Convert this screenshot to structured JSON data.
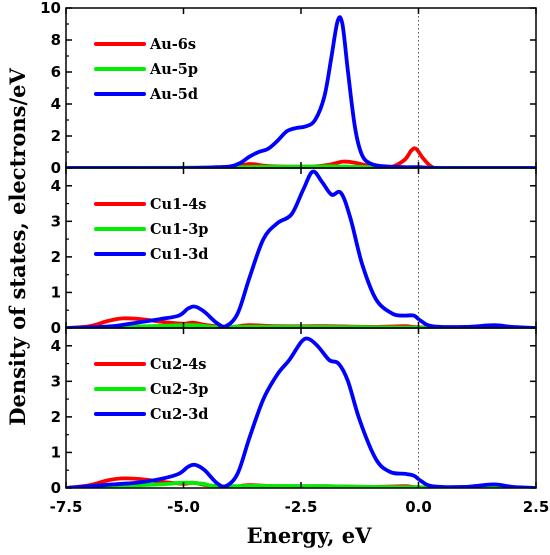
{
  "chart_data": {
    "type": "line",
    "xlabel": "Energy, eV",
    "ylabel": "Density of states, electrons/eV",
    "xlim": [
      -7.5,
      2.5
    ],
    "x_ticks": [
      "-7.5",
      "-5.0",
      "-2.5",
      "0.0",
      "2.5"
    ],
    "fermi_level": 0.0,
    "grid": false,
    "legend_position": "top-left",
    "series_colors": {
      "s": "#ff0000",
      "p": "#00ee00",
      "d": "#0000ff"
    },
    "panels": [
      {
        "ylim": [
          0,
          10
        ],
        "y_ticks": [
          "0",
          "2",
          "4",
          "6",
          "8",
          "10"
        ],
        "legend": [
          "Au-6s",
          "Au-5p",
          "Au-5d"
        ],
        "series": [
          {
            "name": "Au-6s",
            "points": [
              [
                -7.5,
                0
              ],
              [
                -5.5,
                0
              ],
              [
                -4.5,
                0.02
              ],
              [
                -4.0,
                0.05
              ],
              [
                -3.6,
                0.25
              ],
              [
                -3.3,
                0.15
              ],
              [
                -3.0,
                0.1
              ],
              [
                -2.6,
                0.08
              ],
              [
                -2.2,
                0.1
              ],
              [
                -1.9,
                0.2
              ],
              [
                -1.6,
                0.4
              ],
              [
                -1.3,
                0.3
              ],
              [
                -1.0,
                0.1
              ],
              [
                -0.6,
                0.05
              ],
              [
                -0.3,
                0.5
              ],
              [
                -0.15,
                1.1
              ],
              [
                -0.05,
                1.2
              ],
              [
                0.1,
                0.6
              ],
              [
                0.3,
                0.05
              ],
              [
                0.6,
                0
              ],
              [
                2.5,
                0
              ]
            ]
          },
          {
            "name": "Au-5p",
            "points": [
              [
                -7.5,
                0
              ],
              [
                -5.0,
                0.01
              ],
              [
                -4.0,
                0.04
              ],
              [
                -3.2,
                0.08
              ],
              [
                -2.5,
                0.08
              ],
              [
                -1.8,
                0.1
              ],
              [
                -1.0,
                0.05
              ],
              [
                0.0,
                0.02
              ],
              [
                1.0,
                0
              ],
              [
                2.5,
                0
              ]
            ]
          },
          {
            "name": "Au-5d",
            "points": [
              [
                -7.5,
                0
              ],
              [
                -5.0,
                0
              ],
              [
                -4.3,
                0.05
              ],
              [
                -4.0,
                0.1
              ],
              [
                -3.8,
                0.3
              ],
              [
                -3.6,
                0.7
              ],
              [
                -3.4,
                1.0
              ],
              [
                -3.2,
                1.2
              ],
              [
                -3.0,
                1.7
              ],
              [
                -2.8,
                2.3
              ],
              [
                -2.6,
                2.5
              ],
              [
                -2.4,
                2.6
              ],
              [
                -2.2,
                3.0
              ],
              [
                -2.0,
                4.5
              ],
              [
                -1.85,
                7.0
              ],
              [
                -1.72,
                9.2
              ],
              [
                -1.62,
                9.0
              ],
              [
                -1.5,
                6.0
              ],
              [
                -1.35,
                2.5
              ],
              [
                -1.2,
                0.8
              ],
              [
                -1.0,
                0.25
              ],
              [
                -0.7,
                0.1
              ],
              [
                -0.3,
                0.05
              ],
              [
                0,
                0.05
              ],
              [
                0.5,
                0
              ],
              [
                2.5,
                0
              ]
            ]
          }
        ]
      },
      {
        "ylim": [
          0,
          4.5
        ],
        "y_ticks": [
          "0",
          "1",
          "2",
          "3",
          "4"
        ],
        "legend": [
          "Cu1-4s",
          "Cu1-3p",
          "Cu1-3d"
        ],
        "series": [
          {
            "name": "Cu1-4s",
            "points": [
              [
                -7.5,
                0
              ],
              [
                -7.0,
                0.05
              ],
              [
                -6.6,
                0.2
              ],
              [
                -6.3,
                0.27
              ],
              [
                -5.9,
                0.25
              ],
              [
                -5.5,
                0.18
              ],
              [
                -5.0,
                0.12
              ],
              [
                -4.8,
                0.15
              ],
              [
                -4.5,
                0.08
              ],
              [
                -4.0,
                0.03
              ],
              [
                -3.6,
                0.08
              ],
              [
                -3.0,
                0.05
              ],
              [
                -2.0,
                0.05
              ],
              [
                -1.0,
                0.03
              ],
              [
                -0.3,
                0.05
              ],
              [
                0,
                0.02
              ],
              [
                1.0,
                0
              ],
              [
                2.5,
                0
              ]
            ]
          },
          {
            "name": "Cu1-3p",
            "points": [
              [
                -7.5,
                0
              ],
              [
                -6.5,
                0.02
              ],
              [
                -5.5,
                0.06
              ],
              [
                -4.8,
                0.08
              ],
              [
                -4.3,
                0.03
              ],
              [
                -3.5,
                0.04
              ],
              [
                -2.0,
                0.03
              ],
              [
                -1.0,
                0.02
              ],
              [
                0,
                0.01
              ],
              [
                2.5,
                0
              ]
            ]
          },
          {
            "name": "Cu1-3d",
            "points": [
              [
                -7.5,
                0
              ],
              [
                -7.0,
                0.02
              ],
              [
                -6.5,
                0.05
              ],
              [
                -6.0,
                0.15
              ],
              [
                -5.5,
                0.25
              ],
              [
                -5.1,
                0.35
              ],
              [
                -4.9,
                0.55
              ],
              [
                -4.75,
                0.6
              ],
              [
                -4.55,
                0.45
              ],
              [
                -4.3,
                0.15
              ],
              [
                -4.1,
                0.05
              ],
              [
                -3.85,
                0.4
              ],
              [
                -3.6,
                1.4
              ],
              [
                -3.3,
                2.5
              ],
              [
                -3.0,
                2.95
              ],
              [
                -2.7,
                3.2
              ],
              [
                -2.45,
                3.9
              ],
              [
                -2.25,
                4.4
              ],
              [
                -2.05,
                4.1
              ],
              [
                -1.85,
                3.75
              ],
              [
                -1.65,
                3.8
              ],
              [
                -1.45,
                3.1
              ],
              [
                -1.2,
                1.8
              ],
              [
                -0.9,
                0.8
              ],
              [
                -0.55,
                0.4
              ],
              [
                -0.3,
                0.35
              ],
              [
                -0.1,
                0.35
              ],
              [
                0.05,
                0.2
              ],
              [
                0.3,
                0.05
              ],
              [
                1.0,
                0.03
              ],
              [
                1.6,
                0.08
              ],
              [
                2.0,
                0.03
              ],
              [
                2.5,
                0
              ]
            ]
          }
        ]
      },
      {
        "ylim": [
          0,
          4.5
        ],
        "y_ticks": [
          "0",
          "1",
          "2",
          "3",
          "4"
        ],
        "legend": [
          "Cu2-4s",
          "Cu2-3p",
          "Cu2-3d"
        ],
        "series": [
          {
            "name": "Cu2-4s",
            "points": [
              [
                -7.5,
                0
              ],
              [
                -7.0,
                0.08
              ],
              [
                -6.6,
                0.22
              ],
              [
                -6.3,
                0.27
              ],
              [
                -5.9,
                0.25
              ],
              [
                -5.5,
                0.18
              ],
              [
                -5.0,
                0.12
              ],
              [
                -4.8,
                0.15
              ],
              [
                -4.5,
                0.08
              ],
              [
                -4.0,
                0.03
              ],
              [
                -3.6,
                0.08
              ],
              [
                -3.0,
                0.05
              ],
              [
                -2.0,
                0.05
              ],
              [
                -1.0,
                0.03
              ],
              [
                -0.3,
                0.05
              ],
              [
                0,
                0.02
              ],
              [
                1.0,
                0
              ],
              [
                2.5,
                0
              ]
            ]
          },
          {
            "name": "Cu2-3p",
            "points": [
              [
                -7.5,
                0
              ],
              [
                -6.5,
                0.05
              ],
              [
                -5.5,
                0.1
              ],
              [
                -5.0,
                0.15
              ],
              [
                -4.6,
                0.12
              ],
              [
                -4.3,
                0.05
              ],
              [
                -3.5,
                0.06
              ],
              [
                -2.0,
                0.05
              ],
              [
                -1.0,
                0.03
              ],
              [
                0,
                0.02
              ],
              [
                2.5,
                0
              ]
            ]
          },
          {
            "name": "Cu2-3d",
            "points": [
              [
                -7.5,
                0
              ],
              [
                -7.0,
                0.05
              ],
              [
                -6.5,
                0.1
              ],
              [
                -6.0,
                0.15
              ],
              [
                -5.5,
                0.25
              ],
              [
                -5.1,
                0.4
              ],
              [
                -4.9,
                0.6
              ],
              [
                -4.75,
                0.65
              ],
              [
                -4.55,
                0.5
              ],
              [
                -4.3,
                0.15
              ],
              [
                -4.1,
                0.05
              ],
              [
                -3.85,
                0.4
              ],
              [
                -3.6,
                1.4
              ],
              [
                -3.3,
                2.5
              ],
              [
                -3.0,
                3.2
              ],
              [
                -2.75,
                3.6
              ],
              [
                -2.5,
                4.1
              ],
              [
                -2.35,
                4.2
              ],
              [
                -2.15,
                4.0
              ],
              [
                -1.9,
                3.6
              ],
              [
                -1.7,
                3.5
              ],
              [
                -1.5,
                3.0
              ],
              [
                -1.25,
                1.9
              ],
              [
                -0.9,
                0.8
              ],
              [
                -0.6,
                0.45
              ],
              [
                -0.3,
                0.4
              ],
              [
                -0.1,
                0.35
              ],
              [
                0.05,
                0.2
              ],
              [
                0.3,
                0.05
              ],
              [
                1.0,
                0.03
              ],
              [
                1.6,
                0.1
              ],
              [
                2.0,
                0.03
              ],
              [
                2.5,
                0
              ]
            ]
          }
        ]
      }
    ]
  }
}
